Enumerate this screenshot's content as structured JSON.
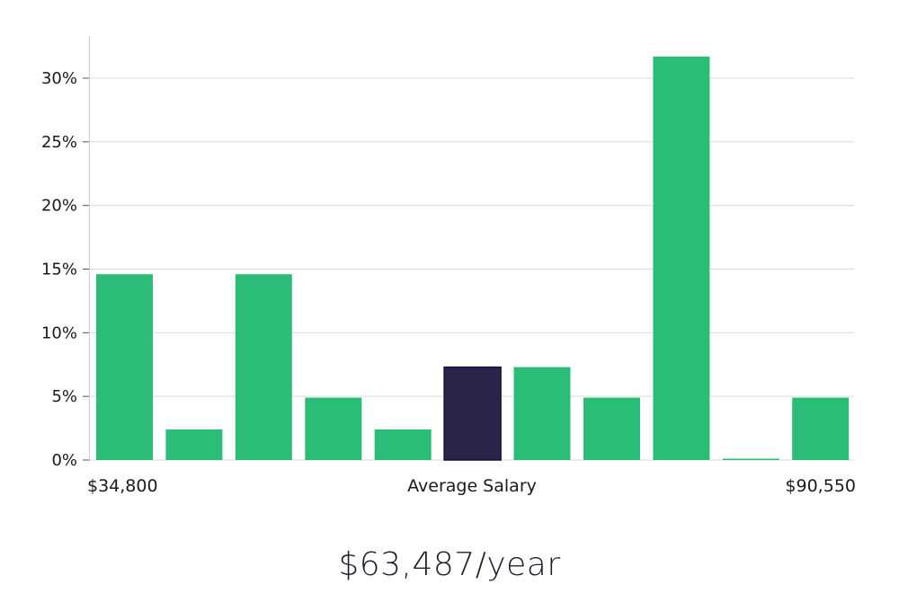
{
  "chart_data": {
    "type": "bar",
    "values": [
      14.6,
      2.4,
      14.6,
      4.9,
      2.4,
      7.3,
      7.3,
      4.9,
      31.7,
      0,
      4.9
    ],
    "highlight_index": 5,
    "ylim": [
      0,
      33
    ],
    "yticks": [
      "0%",
      "5%",
      "10%",
      "15%",
      "20%",
      "25%",
      "30%"
    ],
    "ytick_values": [
      0,
      5,
      10,
      15,
      20,
      25,
      30
    ],
    "x_left_label": "$34,800",
    "x_center_label": "Average Salary",
    "x_right_label": "$90,550",
    "grid": true,
    "colors": {
      "bar": "#2bbd77",
      "highlight": "#28244a",
      "highlight_stroke": "#14123a",
      "grid": "#d9d9d9",
      "axis": "#cfcfcf"
    }
  },
  "salary_text": "$63,487/year"
}
